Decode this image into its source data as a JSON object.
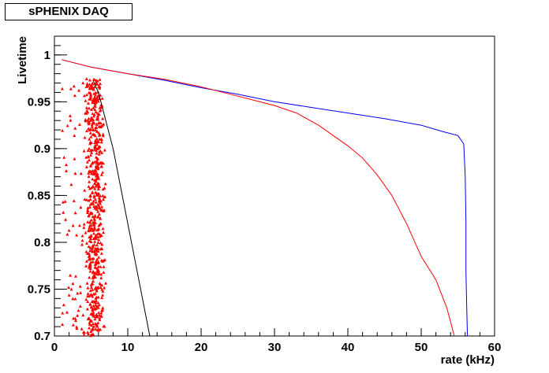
{
  "title": "sPHENIX DAQ",
  "chart_data": {
    "type": "line",
    "title": "sPHENIX DAQ",
    "xlabel": "rate (kHz)",
    "ylabel": "Livetime",
    "xlim": [
      0,
      60
    ],
    "ylim": [
      0.7,
      1.02
    ],
    "xticks": [
      "0",
      "10",
      "20",
      "30",
      "40",
      "50",
      "60"
    ],
    "yticks": [
      "0.7",
      "0.75",
      "0.8",
      "0.85",
      "0.9",
      "0.95",
      "1"
    ],
    "grid": false,
    "series": [
      {
        "color": "#0000ff",
        "x": [
          1,
          5,
          10,
          15,
          20,
          25,
          30,
          35,
          40,
          45,
          50,
          53,
          55,
          55.8,
          56.0,
          56.1,
          56.1,
          56.2,
          56.3
        ],
        "y": [
          0.995,
          0.987,
          0.98,
          0.973,
          0.965,
          0.958,
          0.95,
          0.944,
          0.938,
          0.932,
          0.925,
          0.918,
          0.914,
          0.905,
          0.87,
          0.82,
          0.77,
          0.73,
          0.7
        ]
      },
      {
        "color": "#ff0000",
        "x": [
          1,
          5,
          10,
          15,
          20,
          25,
          30,
          33,
          36,
          38,
          40,
          42,
          44,
          46,
          48,
          50,
          52,
          53.5,
          54.5
        ],
        "y": [
          0.995,
          0.987,
          0.98,
          0.974,
          0.966,
          0.956,
          0.946,
          0.938,
          0.925,
          0.914,
          0.903,
          0.89,
          0.872,
          0.85,
          0.82,
          0.785,
          0.76,
          0.73,
          0.7
        ]
      },
      {
        "color": "#000000",
        "x": [
          5.3,
          6,
          7,
          8,
          9,
          10,
          11,
          12,
          13
        ],
        "y": [
          0.972,
          0.96,
          0.93,
          0.9,
          0.86,
          0.82,
          0.78,
          0.74,
          0.7
        ]
      }
    ],
    "scatter": {
      "color": "#ff0000",
      "x_range": [
        1,
        6.8
      ],
      "x_core": [
        3.5,
        6.5
      ],
      "y_range": [
        0.7,
        0.975
      ],
      "n_points": 700
    }
  }
}
